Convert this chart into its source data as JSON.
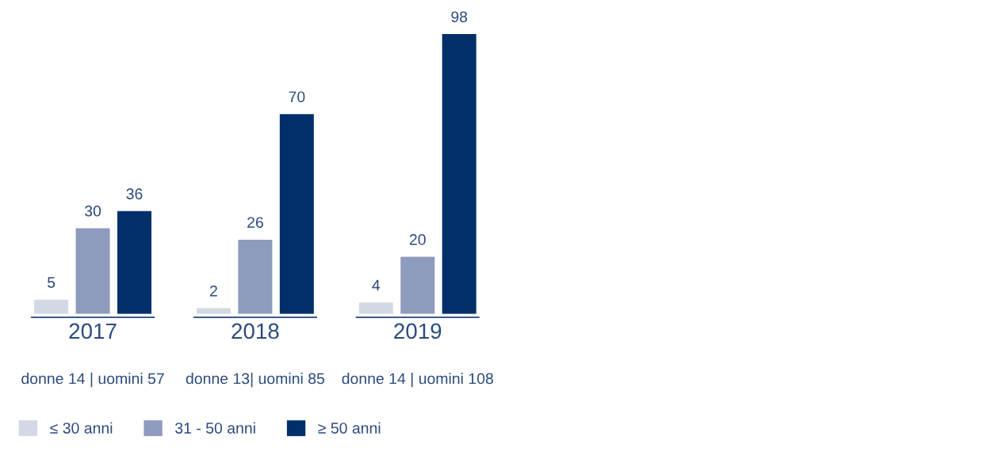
{
  "chart_data": {
    "type": "bar",
    "categories": [
      "2017",
      "2018",
      "2019"
    ],
    "series": [
      {
        "name": "≤ 30 anni",
        "color": "#d3d8e5",
        "values": [
          5,
          2,
          4
        ]
      },
      {
        "name": "31 - 50 anni",
        "color": "#8e9bbd",
        "values": [
          30,
          26,
          20
        ]
      },
      {
        "name": "≥ 50 anni",
        "color": "#002f6a",
        "values": [
          36,
          70,
          98
        ]
      }
    ],
    "data_labels": true,
    "annotations": [
      "donne 14 | uomini 57",
      "donne 13| uomini 85",
      "donne 14 | uomini 108"
    ],
    "legend": "bottom left",
    "grid": false
  }
}
